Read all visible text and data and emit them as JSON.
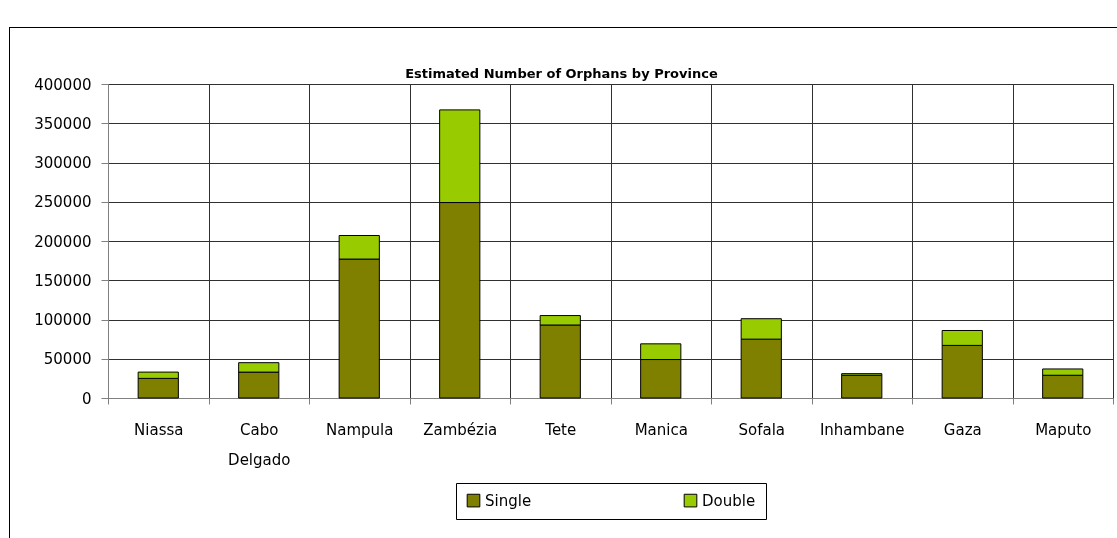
{
  "chart_data": {
    "type": "bar",
    "title": "Estimated Number of Orphans by Province",
    "categories": [
      "Niassa",
      "Cabo Delgado",
      "Nampula",
      "Zambézia",
      "Tete",
      "Manica",
      "Sofala",
      "Inhambane",
      "Gaza",
      "Maputo"
    ],
    "series": [
      {
        "name": "Single",
        "color": "#808000",
        "values": [
          25000,
          33000,
          177000,
          249000,
          93000,
          49000,
          75000,
          29000,
          67000,
          29000
        ]
      },
      {
        "name": "Double",
        "color": "#99cc00",
        "values": [
          8000,
          12000,
          30000,
          118000,
          12000,
          20000,
          26000,
          2000,
          19000,
          8000
        ]
      }
    ],
    "stacked": true,
    "ylim": [
      0,
      400000
    ],
    "yticks": [
      0,
      50000,
      100000,
      150000,
      200000,
      250000,
      300000,
      350000,
      400000
    ],
    "grid": true,
    "legend": "bottom"
  }
}
